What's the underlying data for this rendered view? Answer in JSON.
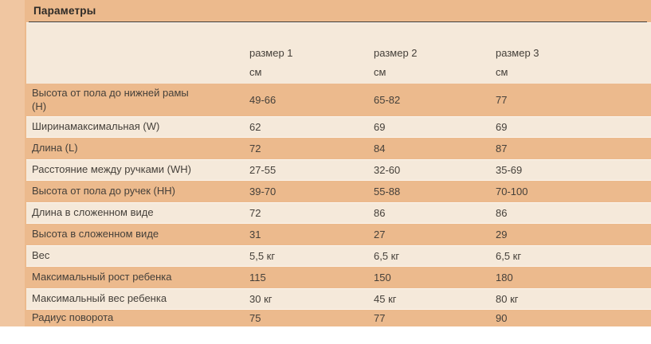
{
  "title": "Параметры",
  "table": {
    "columns": [
      {
        "label": "размер 1",
        "unit": "см"
      },
      {
        "label": "размер 2",
        "unit": "см"
      },
      {
        "label": "размер 3",
        "unit": "см"
      }
    ],
    "rows": [
      {
        "label": "Высота от пола до нижней рамы\n(H)",
        "values": [
          "49-66",
          "65-82",
          "77"
        ]
      },
      {
        "label": "Ширинамаксимальная (W)",
        "values": [
          "62",
          "69",
          "69"
        ]
      },
      {
        "label": "Длина (L)",
        "values": [
          "72",
          "84",
          "87"
        ]
      },
      {
        "label": "Расстояние между ручками (WH)",
        "values": [
          "27-55",
          "32-60",
          "35-69"
        ]
      },
      {
        "label": "Высота от пола до ручек (HH)",
        "values": [
          "39-70",
          "55-88",
          "70-100"
        ]
      },
      {
        "label": "Длина в сложенном виде",
        "values": [
          "72",
          "86",
          "86"
        ]
      },
      {
        "label": "Высота в сложенном виде",
        "values": [
          "31",
          "27",
          "29"
        ]
      },
      {
        "label": "Вес",
        "values": [
          "5,5 кг",
          "6,5 кг",
          "6,5 кг"
        ]
      },
      {
        "label": "Максимальный рост ребенка",
        "values": [
          "115",
          "150",
          "180"
        ]
      },
      {
        "label": "Максимальный вес ребенка",
        "values": [
          "30 кг",
          "45 кг",
          "80 кг"
        ]
      },
      {
        "label": "Радиус поворота",
        "values": [
          "75",
          "77",
          "90"
        ]
      }
    ]
  },
  "colors": {
    "page_orange": "#ecba8d",
    "left_strip": "#f0c6a1",
    "row_cream": "#f5e9da",
    "title_underline": "#3c3834",
    "text": "#45403a"
  }
}
